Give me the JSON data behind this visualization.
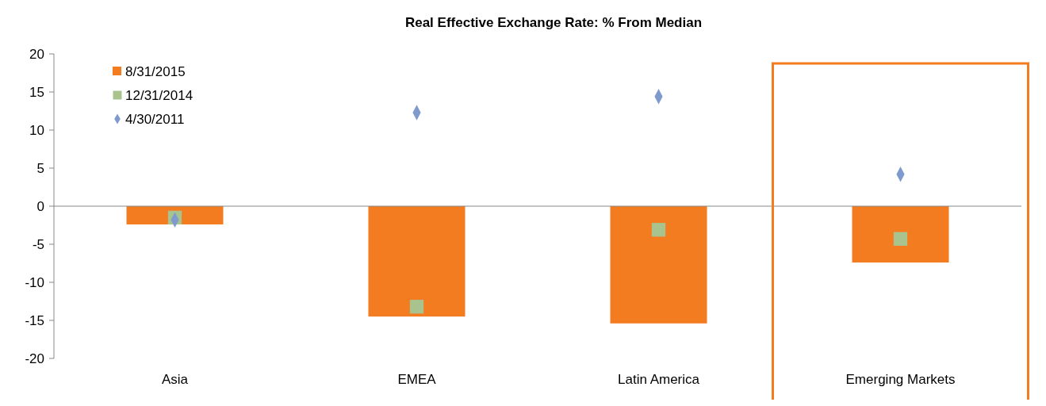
{
  "chart_data": {
    "type": "bar",
    "title": "Real Effective Exchange Rate: % From Median",
    "categories": [
      "Asia",
      "EMEA",
      "Latin America",
      "Emerging Markets"
    ],
    "ylim": [
      -20,
      20
    ],
    "yticks": [
      -20,
      -15,
      -10,
      -5,
      0,
      5,
      10,
      15,
      20
    ],
    "legend": "top left",
    "series": [
      {
        "name": "8/31/2015",
        "color": "#f37b20",
        "values": [
          -2.4,
          -14.5,
          -15.4,
          -7.4
        ]
      },
      {
        "name": "12/31/2014",
        "type": "scatter",
        "marker": "square",
        "color": "#a9c38f",
        "x": [
          "Asia",
          "EMEA",
          "Latin America",
          "Emerging Markets"
        ],
        "values": [
          -1.5,
          -13.2,
          -3.1,
          -4.3
        ]
      },
      {
        "name": "4/30/2011",
        "type": "scatter",
        "marker": "diamond",
        "color": "#7f9bcd",
        "x": [
          "Asia",
          "EMEA",
          "Latin America",
          "Emerging Markets"
        ],
        "values": [
          -1.8,
          12.3,
          14.4,
          4.2
        ]
      }
    ]
  }
}
